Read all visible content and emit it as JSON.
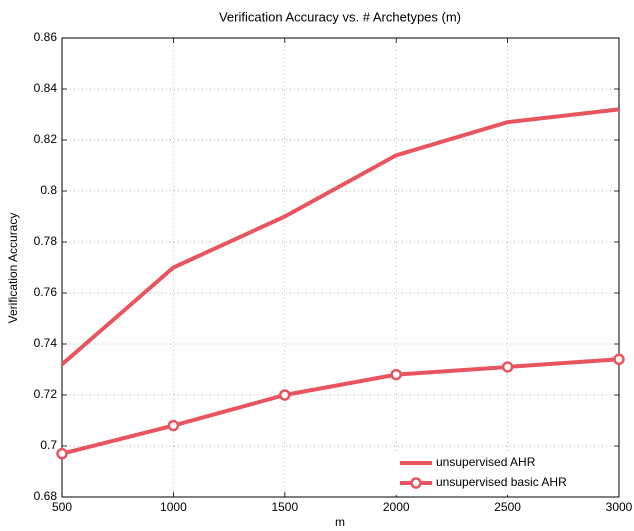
{
  "chart_data": {
    "type": "line",
    "title": "Verification Accuracy vs. # Archetypes (m)",
    "xlabel": "m",
    "ylabel": "Verification Accuracy",
    "x": [
      500,
      1000,
      1500,
      2000,
      2500,
      3000
    ],
    "series": [
      {
        "name": "unsupervised AHR",
        "color": "#e8555e",
        "values": [
          0.732,
          0.77,
          0.79,
          0.814,
          0.827,
          0.832
        ]
      },
      {
        "name": "unsupervised basic AHR",
        "color": "#e8555e",
        "marker": "circle",
        "values": [
          0.697,
          0.708,
          0.72,
          0.728,
          0.731,
          0.734
        ]
      }
    ],
    "xlim": [
      500,
      3000
    ],
    "xticks": [
      500,
      1000,
      1500,
      2000,
      2500,
      3000
    ],
    "ylim": [
      0.68,
      0.86
    ],
    "yticks": [
      0.68,
      0.7,
      0.72,
      0.74,
      0.76,
      0.78,
      0.8,
      0.82,
      0.84,
      0.86
    ],
    "grid": true,
    "legend": "lower right"
  }
}
